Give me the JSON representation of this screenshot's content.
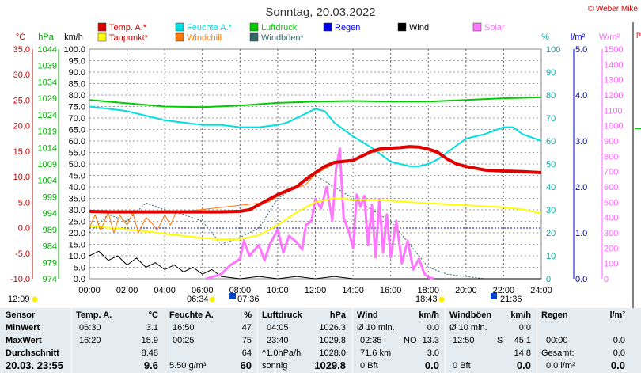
{
  "chart_data": {
    "type": "line",
    "title": "Sonntag, 20.03.2022",
    "credit": "© Weber Mike",
    "x_ticks": [
      "00:00",
      "02:00",
      "04:00",
      "06:00",
      "08:00",
      "10:00",
      "12:00",
      "14:00",
      "16:00",
      "18:00",
      "20:00",
      "22:00",
      "24:00"
    ],
    "xlim": [
      0,
      24
    ],
    "axes": [
      {
        "unit": "°C",
        "color": "#cc0000",
        "range": [
          -10,
          35
        ],
        "ticks": [
          "35.0",
          "30.0",
          "25.0",
          "20.0",
          "15.0",
          "10.0",
          "5.0",
          "0.0",
          "-5.0",
          "-10.0"
        ]
      },
      {
        "unit": "hPa",
        "color": "#00aa00",
        "range": [
          974,
          1044
        ],
        "ticks": [
          "1044",
          "1039",
          "1034",
          "1029",
          "1024",
          "1019",
          "1014",
          "1009",
          "1004",
          "999",
          "994",
          "989",
          "984",
          "979",
          "974"
        ]
      },
      {
        "unit": "km/h",
        "color": "#000000",
        "range": [
          0,
          100
        ],
        "ticks": [
          "100.0",
          "95.0",
          "90.0",
          "85.0",
          "80.0",
          "75.0",
          "70.0",
          "65.0",
          "60.0",
          "55.0",
          "50.0",
          "45.0",
          "40.0",
          "35.0",
          "30.0",
          "25.0",
          "20.0",
          "15.0",
          "10.0",
          "5.0",
          "0.0"
        ]
      },
      {
        "unit": "%",
        "color": "#00bbbb",
        "range": [
          0,
          100
        ],
        "ticks": [
          "100",
          "90",
          "80",
          "70",
          "60",
          "50",
          "40",
          "30",
          "20",
          "10",
          "0"
        ]
      },
      {
        "unit": "l/m²",
        "color": "#0000cc",
        "range": [
          0,
          5
        ],
        "ticks": [
          "5.0",
          "4.0",
          "3.0",
          "2.0",
          "1.0",
          "0.0"
        ]
      },
      {
        "unit": "W/m²",
        "color": "#ff66ff",
        "range": [
          0,
          1500
        ],
        "ticks": [
          "1500",
          "1400",
          "1300",
          "1200",
          "1100",
          "1000",
          "900",
          "800",
          "700",
          "600",
          "500",
          "400",
          "300",
          "200",
          "100",
          "0"
        ]
      }
    ],
    "legend": [
      {
        "name": "Temp. A.*",
        "color": "#e00000"
      },
      {
        "name": "Feuchte A.*",
        "color": "#00e0e0"
      },
      {
        "name": "Luftdruck",
        "color": "#00cc00"
      },
      {
        "name": "Regen",
        "color": "#0000ee"
      },
      {
        "name": "Wind",
        "color": "#000000"
      },
      {
        "name": "Solar",
        "color": "#ff77ff"
      },
      {
        "name": "Taupunkt*",
        "color": "#ffff00"
      },
      {
        "name": "Windchill",
        "color": "#ff7700"
      },
      {
        "name": "Windböen*",
        "color": "#336666"
      }
    ],
    "series": [
      {
        "name": "Temp. A.*",
        "axis": "°C",
        "color": "#e00000",
        "x": [
          0,
          1,
          2,
          3,
          4,
          5,
          6,
          6.5,
          7,
          8,
          8.5,
          9,
          10,
          11,
          11.5,
          12,
          12.5,
          13,
          13.5,
          14,
          15,
          15.5,
          16,
          16.5,
          17,
          17.5,
          18,
          18.5,
          19,
          19.5,
          20,
          21,
          22,
          23,
          24
        ],
        "y": [
          3.2,
          3.1,
          3.1,
          3.1,
          3.1,
          3.1,
          3.1,
          3.1,
          3.1,
          3.2,
          3.5,
          4.5,
          6.5,
          8.0,
          9.5,
          10.8,
          12.0,
          12.8,
          13.0,
          13.2,
          15.0,
          15.5,
          15.6,
          15.7,
          15.9,
          15.8,
          15.4,
          14.8,
          13.5,
          12.5,
          12.0,
          11.3,
          11.1,
          11.0,
          10.8
        ]
      },
      {
        "name": "Windchill",
        "axis": "°C",
        "color": "#ff7700",
        "x": [
          0,
          0.3,
          0.6,
          1.0,
          1.3,
          1.6,
          2.0,
          2.3,
          2.6,
          3.0,
          3.3,
          3.6,
          4.0,
          4.3,
          4.6,
          9.5,
          10,
          11,
          11.5,
          12,
          12.5,
          13,
          14,
          15,
          16,
          17,
          17.5,
          18,
          18.5,
          19
        ],
        "y": [
          0,
          2.5,
          -0.5,
          3,
          -1,
          2.5,
          0.5,
          3,
          -1,
          2,
          1,
          -0.5,
          2.5,
          0.5,
          3,
          5.0,
          6.2,
          7.8,
          8.5,
          10.5,
          11.5,
          12.6,
          13.0,
          14.8,
          15.4,
          15.8,
          15.7,
          15.2,
          14.5,
          13.3
        ]
      },
      {
        "name": "Taupunkt*",
        "axis": "°C",
        "color": "#ffff00",
        "x": [
          0,
          1,
          2,
          3,
          4,
          5,
          6,
          7,
          8,
          9,
          10,
          11,
          12,
          13,
          14,
          15,
          16,
          17,
          18,
          19,
          20,
          21,
          22,
          23,
          24
        ],
        "y": [
          0.3,
          0,
          -0.3,
          -0.7,
          -1.2,
          -1.6,
          -2.0,
          -2.3,
          -2.2,
          -1.5,
          0.5,
          3.0,
          5.0,
          5.8,
          5.5,
          5.5,
          5.3,
          5.0,
          4.8,
          4.6,
          4.4,
          4.2,
          4.0,
          3.6,
          2.8
        ]
      },
      {
        "name": "Feuchte A.*",
        "axis": "%",
        "color": "#00e0e0",
        "x": [
          0,
          1,
          2,
          3,
          4,
          5,
          6,
          7,
          8,
          9,
          10,
          10.5,
          11,
          11.5,
          12,
          12.5,
          13,
          14,
          15,
          16,
          17,
          17.5,
          18,
          18.5,
          19,
          20,
          21,
          22,
          22.5,
          23,
          24
        ],
        "y": [
          75,
          74,
          73,
          71,
          69,
          68,
          67,
          67,
          66,
          66,
          67,
          68,
          70,
          72,
          74,
          73,
          68,
          62,
          57,
          51,
          49,
          49,
          50,
          52,
          55,
          61,
          63,
          66,
          66,
          63,
          60
        ]
      },
      {
        "name": "Luftdruck",
        "axis": "hPa",
        "color": "#00cc00",
        "x": [
          0,
          2,
          4,
          6,
          8,
          10,
          12,
          14,
          16,
          18,
          20,
          22,
          24
        ],
        "y": [
          1028.5,
          1027.5,
          1026.5,
          1026.3,
          1026.8,
          1027.6,
          1028.0,
          1028.2,
          1028.0,
          1028.0,
          1028.5,
          1029.0,
          1029.3
        ]
      },
      {
        "name": "Solar",
        "axis": "W/m²",
        "color": "#ff77ff",
        "x": [
          6.2,
          7,
          7.5,
          8,
          8.2,
          8.5,
          9,
          9.3,
          9.6,
          10,
          10.3,
          10.6,
          11,
          11.3,
          11.5,
          11.8,
          12,
          12.3,
          12.6,
          12.9,
          13.1,
          13.3,
          13.5,
          13.8,
          14,
          14.2,
          14.4,
          14.6,
          14.8,
          15,
          15.2,
          15.4,
          15.6,
          15.8,
          16,
          16.3,
          16.6,
          16.9,
          17.2,
          17.5,
          17.8,
          18,
          18.3
        ],
        "y": [
          0,
          30,
          90,
          130,
          250,
          150,
          220,
          120,
          230,
          320,
          170,
          280,
          240,
          190,
          350,
          380,
          520,
          460,
          600,
          380,
          720,
          850,
          400,
          300,
          200,
          550,
          470,
          540,
          220,
          480,
          140,
          520,
          170,
          420,
          140,
          380,
          100,
          250,
          60,
          130,
          30,
          10,
          0
        ]
      },
      {
        "name": "Windböen*",
        "axis": "km/h",
        "color": "#336666",
        "dash": "2,2",
        "x": [
          0,
          1,
          2,
          3,
          4,
          5,
          6,
          7,
          8,
          9,
          10,
          11,
          12,
          13,
          14,
          15,
          16,
          17,
          18,
          19,
          20,
          21,
          22,
          23,
          24
        ],
        "y": [
          20,
          28,
          25,
          33,
          30,
          28,
          25,
          15,
          18,
          22,
          35,
          40,
          45,
          40,
          35,
          30,
          25,
          15,
          5,
          2,
          1,
          0,
          0,
          0,
          0
        ]
      },
      {
        "name": "Wind",
        "axis": "km/h",
        "color": "#000000",
        "x": [
          0,
          0.5,
          1,
          1.5,
          2,
          2.5,
          3,
          3.5,
          4,
          4.5,
          5,
          5.5,
          6,
          6.5,
          7,
          8,
          9,
          10,
          11,
          12,
          13,
          14,
          15,
          16,
          17,
          18,
          19,
          20,
          21,
          22,
          23,
          24
        ],
        "y": [
          10,
          12,
          8,
          10,
          6,
          9,
          5,
          7,
          4,
          6,
          3,
          5,
          2,
          4,
          1,
          0,
          1,
          0,
          1,
          0,
          1,
          0,
          0,
          0,
          0,
          0,
          0,
          0,
          0,
          0,
          0,
          0
        ]
      }
    ],
    "markers": {
      "left": "12:09",
      "sunrise": "06:34",
      "sunrise2": "07:36",
      "sunset": "18:43",
      "sunset2": "21:36"
    }
  },
  "stats": {
    "headers": {
      "sensor": "Sensor",
      "temp": "Temp. A.",
      "temp_unit": "°C",
      "hum": "Feuchte A.",
      "hum_unit": "%",
      "press": "Luftdruck",
      "press_unit": "hPa",
      "wind": "Wind",
      "wind_unit": "km/h",
      "gust": "Windböen",
      "gust_unit": "km/h",
      "rain": "Regen",
      "rain_unit": "l/m²"
    },
    "min": {
      "label": "MinWert",
      "temp_time": "06:30",
      "temp": "3.1",
      "hum_time": "16:50",
      "hum": "47",
      "press_time": "04:05",
      "press": "1026.3",
      "wind_label": "Ø 10 min.",
      "wind": "0.0",
      "gust_label": "Ø 10 min.",
      "gust": "0.0"
    },
    "max": {
      "label": "MaxWert",
      "temp_time": "16:20",
      "temp": "15.9",
      "hum_time": "00:25",
      "hum": "75",
      "press_time": "23:40",
      "press": "1029.8",
      "wind_time": "02:35",
      "wind_dir": "NO",
      "wind": "13.3",
      "gust_time": "12:50",
      "gust_dir": "S",
      "gust": "45.1",
      "rain_time": "00:00",
      "rain": "0.0"
    },
    "avg": {
      "label": "Durchschnitt",
      "temp": "8.48",
      "hum": "64",
      "press_trend": "^1.0hPa/h",
      "press": "1028.0",
      "wind_dist": "71.6 km",
      "wind": "3.0",
      "gust": "14.8",
      "rain_label": "Gesamt:",
      "rain": "0.0"
    },
    "current": {
      "label": "20.03. 23:55",
      "temp": "9.6",
      "abs_hum": "5.50 g/m³",
      "hum": "60",
      "weather": "sonnig",
      "press": "1029.8",
      "wind_bft": "0 Bft",
      "wind": "0.0",
      "gust_bft": "0 Bft",
      "gust": "0.0",
      "rain": "0.0 l/m²",
      "rain_val": "0.0"
    }
  }
}
